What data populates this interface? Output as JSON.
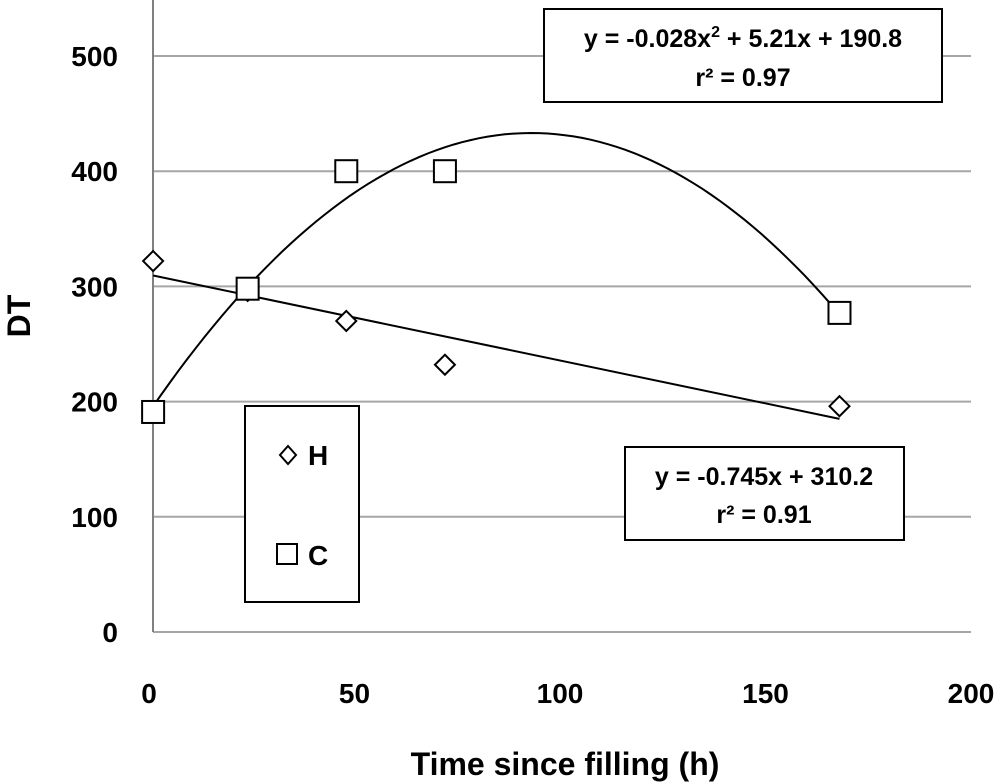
{
  "chart_data": {
    "type": "scatter",
    "xlabel": "Time since filling (h)",
    "ylabel": "DT",
    "xlim": [
      0,
      200
    ],
    "ylim": [
      0,
      500
    ],
    "x_ticks": [
      "0",
      "50",
      "100",
      "150",
      "200"
    ],
    "y_ticks": [
      "0",
      "100",
      "200",
      "300",
      "400",
      "500"
    ],
    "grid": "horizontal",
    "legend_position": "bottom-left",
    "series": [
      {
        "name": "H",
        "marker": "diamond",
        "x": [
          1,
          24,
          48,
          72,
          168
        ],
        "y": [
          322,
          296,
          270,
          232,
          196
        ],
        "fit": {
          "type": "linear",
          "a": -0.745,
          "b": 310.2,
          "x_range": [
            1,
            168
          ]
        },
        "fit_label": {
          "equation": "y = -0.745x + 310.2",
          "r2": "r² = 0.91"
        }
      },
      {
        "name": "C",
        "marker": "square",
        "x": [
          1,
          24,
          48,
          72,
          168
        ],
        "y": [
          191,
          298,
          400,
          400,
          277
        ],
        "fit": {
          "type": "quadratic",
          "a": -0.028,
          "b": 5.21,
          "c": 190.8,
          "x_range": [
            1,
            168
          ]
        },
        "fit_label": {
          "equation_prefix": "y = -0.028x",
          "equation_sup": "2",
          "equation_suffix": " + 5.21x + 190.8",
          "r2": "r² = 0.97"
        }
      }
    ]
  }
}
